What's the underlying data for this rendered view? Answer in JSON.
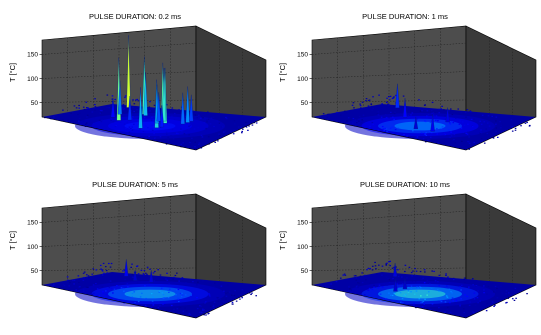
{
  "chart_data": [
    {
      "type": "surface-3d",
      "title": "PULSE DURATION: 0.2 ms",
      "ylabel": "T [°C]",
      "zticks": [
        50,
        100,
        150
      ],
      "zlim": [
        20,
        180
      ],
      "peak_temperatures": [
        170,
        150,
        145,
        140,
        135,
        130,
        120,
        110,
        105,
        100,
        95,
        90,
        85,
        80,
        75,
        70,
        65,
        60
      ],
      "colormap": [
        "#00008f",
        "#0000ff",
        "#00a0ff",
        "#40ffc0",
        "#ffff00"
      ]
    },
    {
      "type": "surface-3d",
      "title": "PULSE DURATION: 1 ms",
      "ylabel": "T [°C]",
      "zticks": [
        50,
        100,
        150
      ],
      "zlim": [
        20,
        180
      ],
      "peak_temperatures": [
        70,
        60,
        55,
        50,
        45
      ],
      "colormap": [
        "#00008f",
        "#0000ff",
        "#00a0ff",
        "#40ffc0",
        "#ffff00"
      ]
    },
    {
      "type": "surface-3d",
      "title": "PULSE DURATION: 5 ms",
      "ylabel": "T [°C]",
      "zticks": [
        50,
        100,
        150
      ],
      "zlim": [
        20,
        180
      ],
      "peak_temperatures": [
        55,
        45,
        42
      ],
      "colormap": [
        "#00008f",
        "#0000ff",
        "#00a0ff",
        "#40ffc0",
        "#ffff00"
      ]
    },
    {
      "type": "surface-3d",
      "title": "PULSE DURATION: 10 ms",
      "ylabel": "T [°C]",
      "zticks": [
        50,
        100,
        150
      ],
      "zlim": [
        20,
        180
      ],
      "peak_temperatures": [
        48,
        45,
        42
      ],
      "colormap": [
        "#00008f",
        "#0000ff",
        "#00a0ff",
        "#40ffc0",
        "#ffff00"
      ]
    }
  ]
}
